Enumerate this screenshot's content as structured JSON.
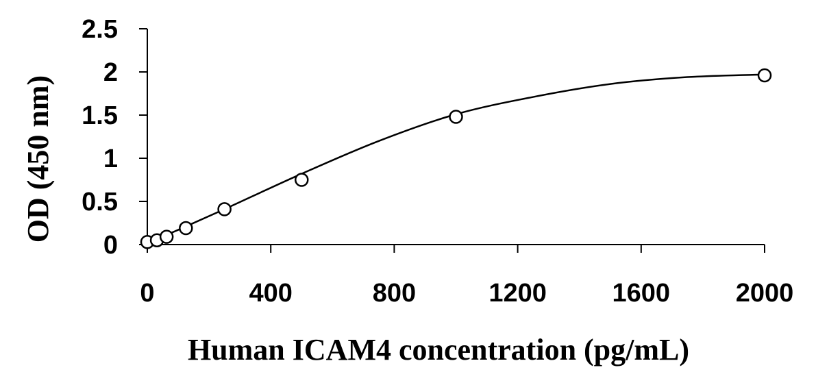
{
  "chart_data": {
    "type": "scatter",
    "title": "",
    "xlabel": "Human ICAM4 concentration (pg/mL)",
    "ylabel": "OD (450 nm)",
    "xlim": [
      0,
      2000
    ],
    "ylim": [
      0,
      2.5
    ],
    "x_ticks": [
      0,
      400,
      800,
      1200,
      1600,
      2000
    ],
    "x_tick_labels": [
      "0",
      "400",
      "800",
      "1200",
      "1600",
      "2000"
    ],
    "y_ticks": [
      0,
      0.5,
      1,
      1.5,
      2,
      2.5
    ],
    "y_tick_labels": [
      "0",
      "0.5",
      "1",
      "1.5",
      "2",
      "2.5"
    ],
    "grid": false,
    "legend": "none",
    "series": [
      {
        "marker": "open-circle",
        "x": [
          0,
          31.25,
          62.5,
          125,
          250,
          500,
          1000,
          2000
        ],
        "y": [
          0.03,
          0.05,
          0.09,
          0.19,
          0.41,
          0.75,
          1.48,
          1.96
        ]
      }
    ],
    "fit_curve": {
      "type": "smooth-fit",
      "x": [
        0,
        100,
        250,
        500,
        750,
        1000,
        1250,
        1500,
        1750,
        2000
      ],
      "y": [
        0.02,
        0.17,
        0.41,
        0.82,
        1.2,
        1.51,
        1.71,
        1.86,
        1.94,
        1.97
      ]
    },
    "colors": {
      "axis": "#000000",
      "marker_stroke": "#000000",
      "marker_fill": "#ffffff",
      "curve": "#000000"
    }
  }
}
